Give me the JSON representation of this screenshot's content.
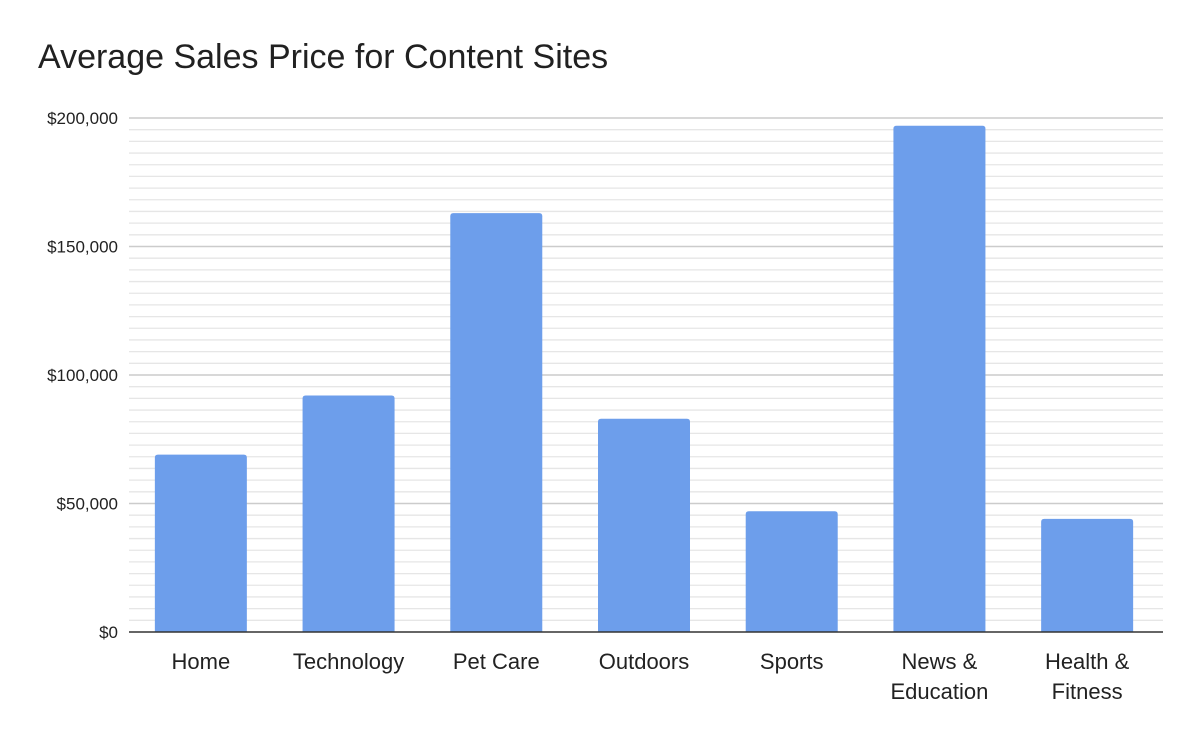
{
  "chart_data": {
    "type": "bar",
    "title": "Average Sales Price for Content Sites",
    "xlabel": "",
    "ylabel": "",
    "categories": [
      [
        "Home"
      ],
      [
        "Technology"
      ],
      [
        "Pet Care"
      ],
      [
        "Outdoors"
      ],
      [
        "Sports"
      ],
      [
        "News &",
        "Education"
      ],
      [
        "Health &",
        "Fitness"
      ]
    ],
    "values": [
      69000,
      92000,
      163000,
      83000,
      47000,
      197000,
      44000
    ],
    "ylim": [
      0,
      200000
    ],
    "yticks": [
      0,
      50000,
      100000,
      150000,
      200000
    ],
    "ytick_labels": [
      "$0",
      "$50,000",
      "$100,000",
      "$150,000",
      "$200,000"
    ],
    "grid": true,
    "minor_grid": true,
    "bar_color": "#6d9eeb",
    "legend": "none"
  }
}
